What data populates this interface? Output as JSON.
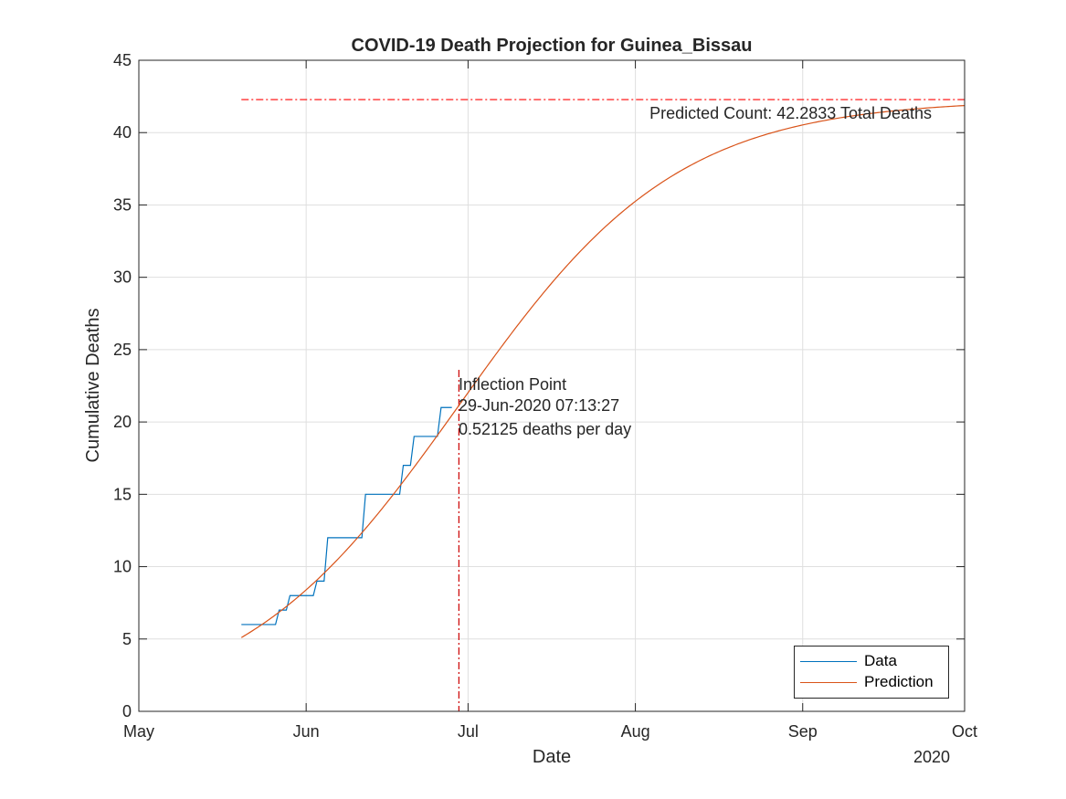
{
  "chart_data": {
    "type": "line",
    "title": "COVID-19 Death Projection for Guinea_Bissau",
    "xlabel": "Date",
    "ylabel": "Cumulative Deaths",
    "x_tick_labels": [
      "May",
      "Jun",
      "Jul",
      "Aug",
      "Sep",
      "Oct"
    ],
    "x_ticks": [
      "2020-05-01",
      "2020-06-01",
      "2020-07-01",
      "2020-08-01",
      "2020-09-01",
      "2020-10-01"
    ],
    "x_year_label": "2020",
    "xlim": [
      "2020-05-01",
      "2020-10-01"
    ],
    "ylim": [
      0,
      45
    ],
    "y_ticks": [
      0,
      5,
      10,
      15,
      20,
      25,
      30,
      35,
      40,
      45
    ],
    "grid": true,
    "legend_location": "bottom-right",
    "series": [
      {
        "name": "Data",
        "color": "#0072BD",
        "step": true,
        "points": [
          [
            "2020-05-20",
            6
          ],
          [
            "2020-05-27",
            7
          ],
          [
            "2020-05-29",
            8
          ],
          [
            "2020-06-03",
            9
          ],
          [
            "2020-06-05",
            12
          ],
          [
            "2020-06-12",
            15
          ],
          [
            "2020-06-19",
            17
          ],
          [
            "2020-06-21",
            19
          ],
          [
            "2020-06-26",
            21
          ],
          [
            "2020-06-28",
            21
          ]
        ]
      },
      {
        "name": "Prediction",
        "color": "#D95319",
        "logistic": {
          "K": 42.2833,
          "midpoint": "2020-06-29T07:13:27",
          "rate": 0.0493
        },
        "x_range": [
          "2020-05-20",
          "2020-10-01"
        ]
      }
    ],
    "reference_lines": [
      {
        "kind": "horizontal",
        "y": 42.2833,
        "x_start": "2020-05-20",
        "color": "#FF0000",
        "style": "dash-dot"
      },
      {
        "kind": "vertical",
        "x": "2020-06-29T07:13:27",
        "color": "#CC0000",
        "style": "dash-dot"
      }
    ],
    "annotations": {
      "predicted_count": "Predicted Count: 42.2833 Total Deaths",
      "inflection_title": "Inflection Point",
      "inflection_date": "29-Jun-2020 07:13:27",
      "inflection_rate": "0.52125 deaths per day"
    }
  }
}
